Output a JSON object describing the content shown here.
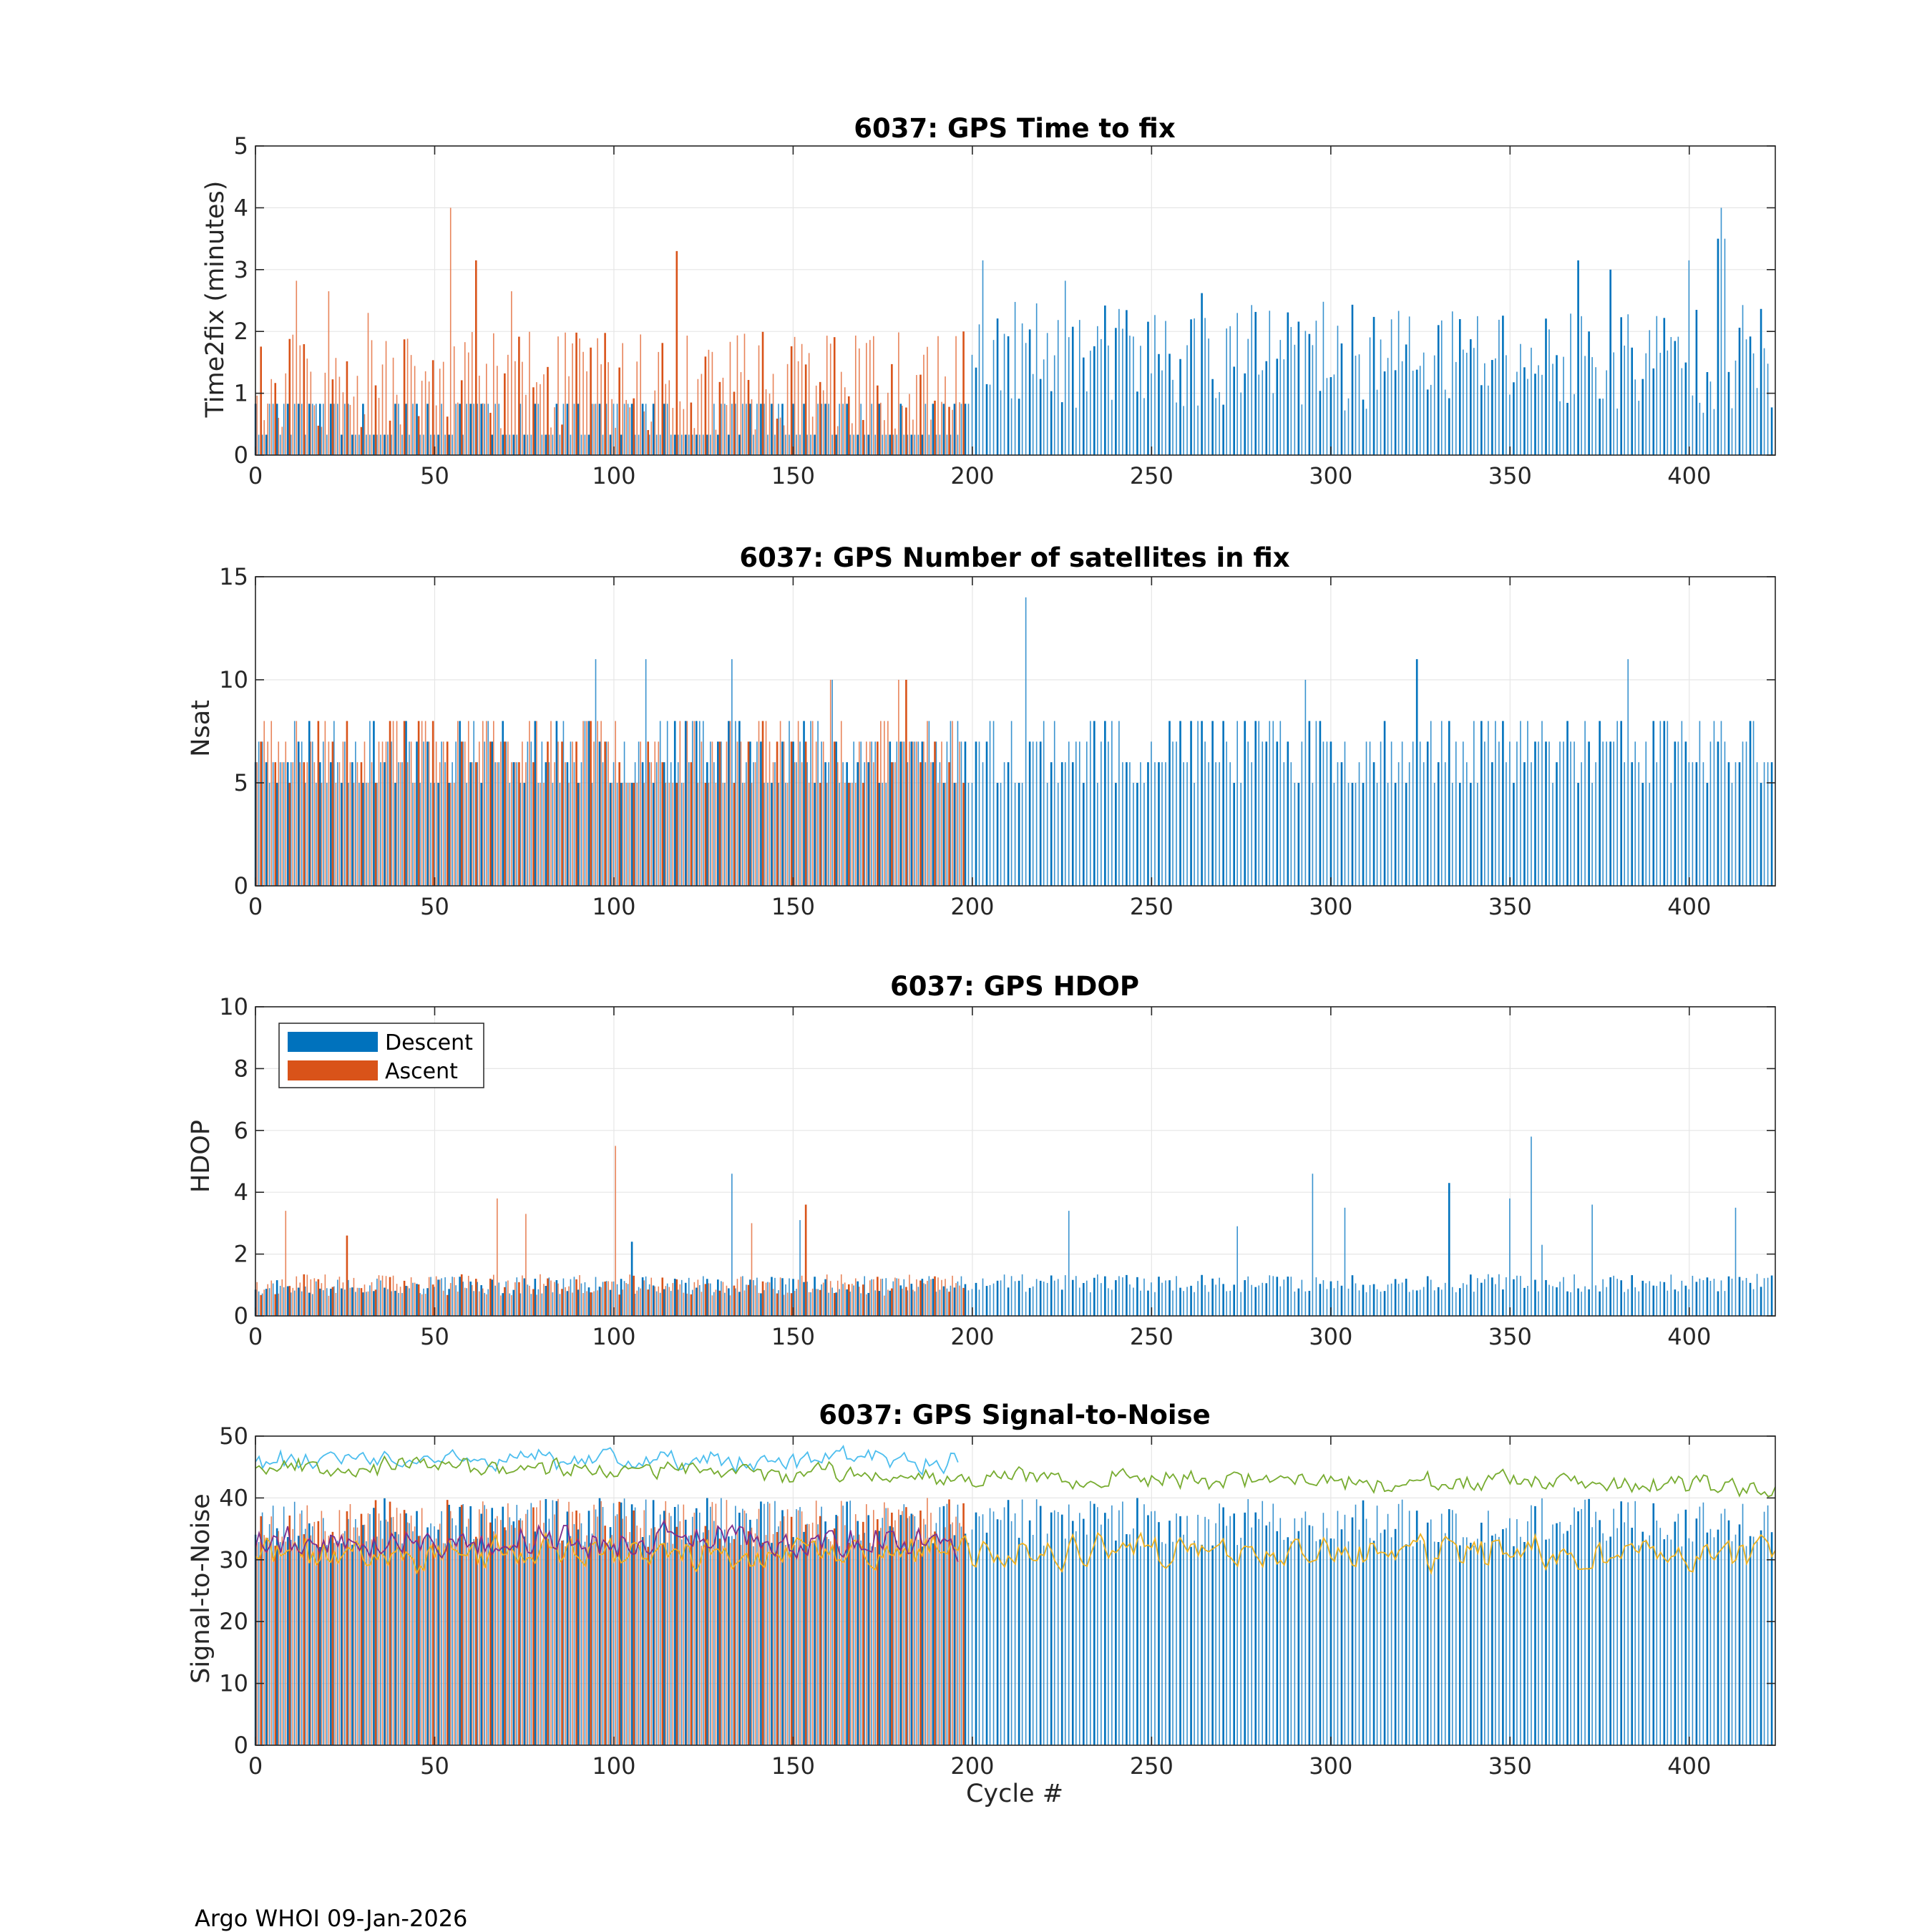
{
  "footer": "Argo WHOI 09-Jan-2026",
  "colors": {
    "descent": "#0072BD",
    "ascent": "#D95319",
    "descent_light": "#4DBEEE",
    "grid": "#e6e6e6",
    "axis": "#262626",
    "snr_green": "#77AC30",
    "snr_yellow": "#EDB120",
    "snr_purple": "#7E2F8E"
  },
  "legend": {
    "descent": "Descent",
    "ascent": "Ascent"
  },
  "chart_data": [
    {
      "id": "ttf",
      "type": "bar",
      "title": "6037: GPS Time to fix",
      "xlabel": "",
      "ylabel": "Time2fix (minutes)",
      "xlim": [
        0,
        424
      ],
      "ylim": [
        0,
        5
      ],
      "xticks": [
        0,
        50,
        100,
        150,
        200,
        250,
        300,
        350,
        400
      ],
      "yticks": [
        0,
        1,
        2,
        3,
        4,
        5
      ],
      "grid": true,
      "generator": {
        "seed": 11,
        "descent_base": 0.8,
        "descent_var": 0.2,
        "descent_late_base": 1.4,
        "descent_late_var": 0.9,
        "ascent_base": 1.2,
        "ascent_var": 0.8
      },
      "peaks_descent": [
        [
          203,
          3.15
        ],
        [
          226,
          2.82
        ],
        [
          264,
          2.62
        ],
        [
          369,
          3.15
        ],
        [
          378,
          3.0
        ],
        [
          400,
          3.15
        ],
        [
          408,
          3.5
        ],
        [
          409,
          4.0
        ],
        [
          410,
          3.5
        ]
      ],
      "peaks_ascent": [
        [
          54,
          4.0
        ],
        [
          61,
          3.15
        ],
        [
          117,
          3.3
        ],
        [
          11,
          2.82
        ],
        [
          20,
          2.65
        ],
        [
          31,
          2.3
        ],
        [
          71,
          2.65
        ],
        [
          197,
          2.0
        ]
      ]
    },
    {
      "id": "nsat",
      "type": "bar",
      "title": "6037: GPS Number of satellites in fix",
      "xlabel": "",
      "ylabel": "Nsat",
      "xlim": [
        0,
        424
      ],
      "ylim": [
        0,
        15
      ],
      "xticks": [
        0,
        50,
        100,
        150,
        200,
        250,
        300,
        350,
        400
      ],
      "yticks": [
        0,
        5,
        10,
        15
      ],
      "grid": true,
      "generator": {
        "seed": 23,
        "descent_base": 6.5,
        "descent_var": 1.8,
        "descent_late_base": 6.2,
        "descent_late_var": 1.8,
        "ascent_base": 6.5,
        "ascent_var": 1.8,
        "integer": true
      },
      "peaks_descent": [
        [
          95,
          11
        ],
        [
          109,
          11
        ],
        [
          133,
          11
        ],
        [
          215,
          14
        ],
        [
          324,
          11
        ],
        [
          383,
          11
        ],
        [
          161,
          10
        ],
        [
          293,
          10
        ]
      ],
      "peaks_ascent": [
        [
          179,
          10
        ],
        [
          181,
          10
        ],
        [
          160,
          10
        ]
      ]
    },
    {
      "id": "hdop",
      "type": "bar",
      "title": "6037: GPS HDOP",
      "xlabel": "",
      "ylabel": "HDOP",
      "xlim": [
        0,
        424
      ],
      "ylim": [
        0,
        10
      ],
      "xticks": [
        0,
        50,
        100,
        150,
        200,
        250,
        300,
        350,
        400
      ],
      "yticks": [
        0,
        2,
        4,
        6,
        8,
        10
      ],
      "grid": true,
      "legend": true,
      "generator": {
        "seed": 37,
        "descent_base": 1.0,
        "descent_var": 0.3,
        "descent_late_base": 1.0,
        "descent_late_var": 0.3,
        "ascent_base": 1.0,
        "ascent_var": 0.35
      },
      "peaks_descent": [
        [
          133,
          4.6
        ],
        [
          152,
          3.1
        ],
        [
          227,
          3.4
        ],
        [
          295,
          4.6
        ],
        [
          304,
          3.5
        ],
        [
          333,
          4.3
        ],
        [
          350,
          3.8
        ],
        [
          356,
          5.8
        ],
        [
          373,
          3.6
        ],
        [
          413,
          3.5
        ],
        [
          274,
          2.9
        ],
        [
          105,
          2.4
        ],
        [
          359,
          2.3
        ]
      ],
      "peaks_ascent": [
        [
          100,
          5.5
        ],
        [
          8,
          3.4
        ],
        [
          67,
          3.8
        ],
        [
          75,
          3.3
        ],
        [
          153,
          3.6
        ],
        [
          138,
          3.0
        ],
        [
          25,
          2.6
        ]
      ]
    },
    {
      "id": "snr",
      "type": "bar+line",
      "title": "6037: GPS Signal-to-Noise",
      "xlabel": "Cycle #",
      "ylabel": "Signal-to-Noise",
      "xlim": [
        0,
        424
      ],
      "ylim": [
        0,
        50
      ],
      "xticks": [
        0,
        50,
        100,
        150,
        200,
        250,
        300,
        350,
        400
      ],
      "yticks": [
        0,
        10,
        20,
        30,
        40,
        50
      ],
      "grid": true,
      "generator": {
        "seed": 53,
        "bar_base": 36,
        "bar_var": 4,
        "ascent_base": 36,
        "ascent_var": 4
      },
      "lines": [
        {
          "name": "max_ascent",
          "color": "#4DBEEE",
          "x_range": [
            0,
            196
          ],
          "base": 46,
          "var": 2.2,
          "seed": 61
        },
        {
          "name": "max_descent",
          "color": "#77AC30",
          "x_range": [
            0,
            424
          ],
          "base": 45.5,
          "end": 41.5,
          "var": 2.0,
          "seed": 67
        },
        {
          "name": "mean_descent",
          "color": "#EDB120",
          "x_range": [
            0,
            424
          ],
          "base": 31,
          "var": 3.5,
          "seed": 71
        },
        {
          "name": "mean_ascent",
          "color": "#7E2F8E",
          "x_range": [
            0,
            196
          ],
          "base": 33,
          "var": 3.5,
          "seed": 79
        }
      ]
    }
  ]
}
